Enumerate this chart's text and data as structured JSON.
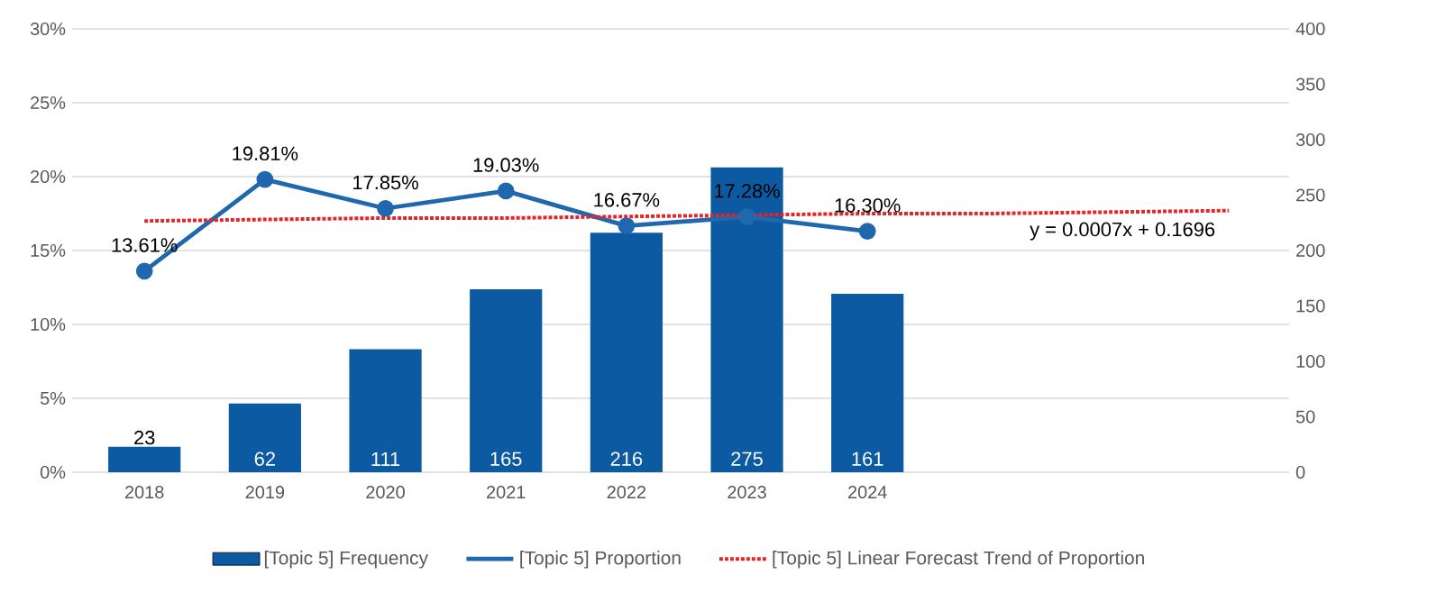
{
  "chart_data": {
    "type": "bar",
    "categories": [
      "2018",
      "2019",
      "2020",
      "2021",
      "2022",
      "2023",
      "2024",
      null,
      null,
      null
    ],
    "series": [
      {
        "name": "[Topic 5] Frequency",
        "axis": "y2",
        "color": "#0b5aa2",
        "values": [
          23,
          62,
          111,
          165,
          216,
          275,
          161,
          null,
          null,
          null
        ],
        "value_labels": [
          "23",
          "62",
          "111",
          "165",
          "216",
          "275",
          "161",
          null,
          null,
          null
        ]
      },
      {
        "name": "[Topic 5] Proportion",
        "type": "line",
        "color": "#1f68b0",
        "marker": "circle",
        "line_style": "solid",
        "values": [
          13.61,
          19.81,
          17.85,
          19.03,
          16.67,
          17.28,
          16.3,
          null,
          null,
          null
        ],
        "value_labels": [
          "13.61%",
          "19.81%",
          "17.85%",
          "19.03%",
          "16.67%",
          "17.28%",
          "16.30%",
          null,
          null,
          null
        ]
      },
      {
        "name": "[Topic 5] Linear Forecast Trend of Proportion",
        "type": "line",
        "color": "#e0282a",
        "marker": "none",
        "line_style": "dotted",
        "values": [
          17.0,
          17.1,
          17.2,
          17.2,
          17.3,
          17.4,
          17.5,
          17.5,
          17.6,
          17.7
        ]
      }
    ],
    "ylim": [
      0,
      30
    ],
    "yticks": [
      {
        "value": 0,
        "label": "0%"
      },
      {
        "value": 5,
        "label": "5%"
      },
      {
        "value": 10,
        "label": "10%"
      },
      {
        "value": 15,
        "label": "15%"
      },
      {
        "value": 20,
        "label": "20%"
      },
      {
        "value": 25,
        "label": "25%"
      },
      {
        "value": 30,
        "label": "30%"
      }
    ],
    "y2lim": [
      0,
      400
    ],
    "y2ticks": [
      0,
      50,
      100,
      150,
      200,
      250,
      300,
      350,
      400
    ],
    "annotations": [
      "y = 0.0007x + 0.1696"
    ],
    "grid": "y",
    "legend": "bottom"
  }
}
